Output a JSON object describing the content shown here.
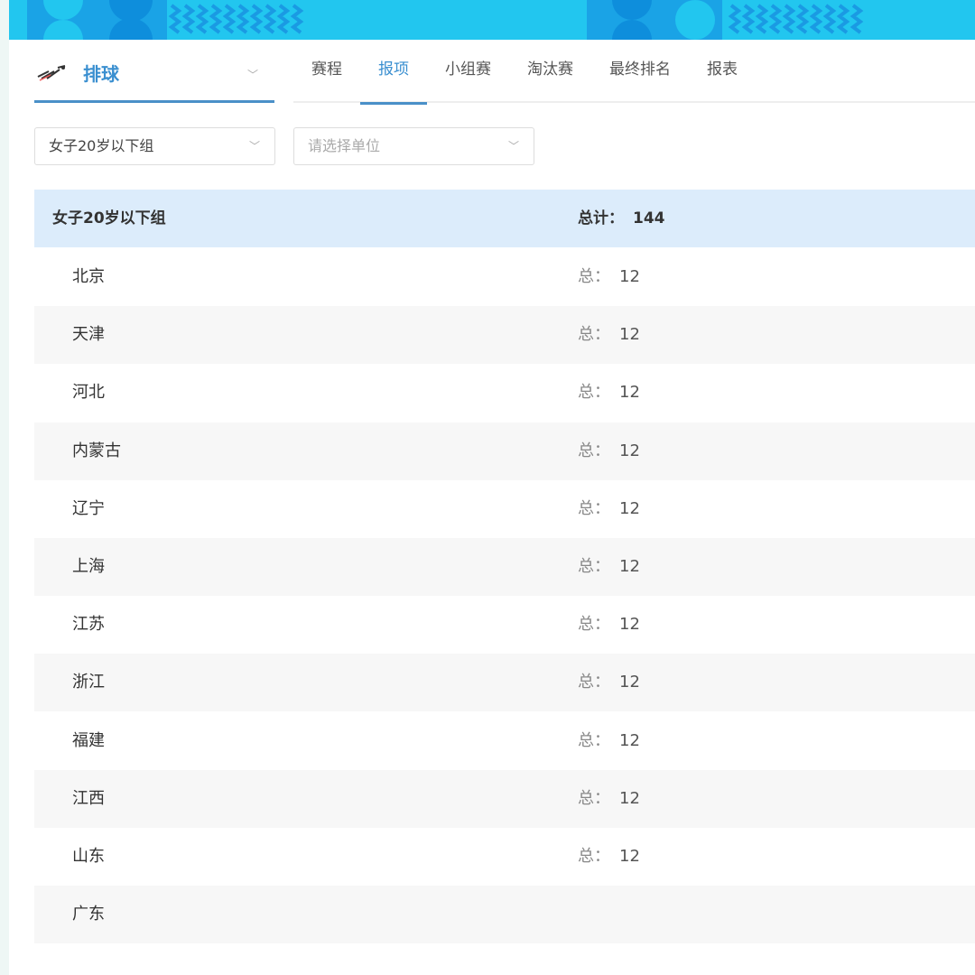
{
  "colors": {
    "accent": "#3a8fd0",
    "banner": "#1ec8f0",
    "header_row": "#dcecfb"
  },
  "sport": {
    "icon": "volleyball-players-logo",
    "name": "排球"
  },
  "tabs": [
    {
      "label": "赛程"
    },
    {
      "label": "报项",
      "active": true
    },
    {
      "label": "小组赛"
    },
    {
      "label": "淘汰赛"
    },
    {
      "label": "最终排名"
    },
    {
      "label": "报表"
    }
  ],
  "filters": {
    "group_value": "女子20岁以下组",
    "unit_placeholder": "请选择单位"
  },
  "table": {
    "group": "女子20岁以下组",
    "total_label": "总计：",
    "total": "144",
    "row_label": "总：",
    "rows": [
      {
        "name": "北京",
        "count": "12"
      },
      {
        "name": "天津",
        "count": "12"
      },
      {
        "name": "河北",
        "count": "12"
      },
      {
        "name": "内蒙古",
        "count": "12"
      },
      {
        "name": "辽宁",
        "count": "12"
      },
      {
        "name": "上海",
        "count": "12"
      },
      {
        "name": "江苏",
        "count": "12"
      },
      {
        "name": "浙江",
        "count": "12"
      },
      {
        "name": "福建",
        "count": "12"
      },
      {
        "name": "江西",
        "count": "12"
      },
      {
        "name": "山东",
        "count": "12"
      },
      {
        "name": "广东",
        "count": ""
      }
    ]
  }
}
